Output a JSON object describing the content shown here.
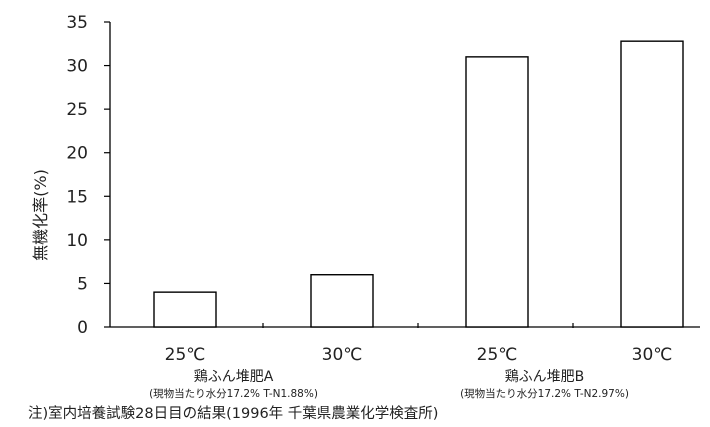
{
  "chart_data": {
    "type": "bar",
    "ylabel": "無機化率(%)",
    "ylim": [
      0,
      35
    ],
    "yticks": [
      0,
      5,
      10,
      15,
      20,
      25,
      30,
      35
    ],
    "categories": [
      "25℃",
      "30℃",
      "25℃",
      "30℃"
    ],
    "values": [
      4,
      6,
      31,
      32.8
    ],
    "groups": [
      {
        "label": "鶏ふん堆肥A",
        "sublabel": "(現物当たり水分17.2% T-N1.88%)"
      },
      {
        "label": "鶏ふん堆肥B",
        "sublabel": "(現物当たり水分17.2% T-N2.97%)"
      }
    ],
    "note": "注)室内培養試験28日目の結果(1996年 千葉県農業化学検査所)",
    "bar_fill": "#ffffff",
    "bar_stroke": "#000000",
    "grid": false
  }
}
